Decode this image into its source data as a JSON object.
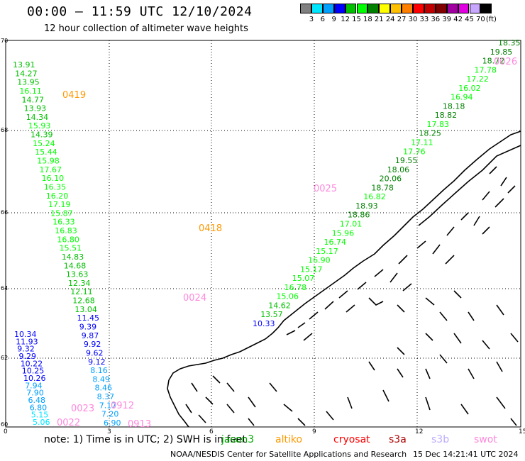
{
  "header": {
    "title": "00:00 — 11:59 UTC 12/10/2024",
    "subtitle": "12 hour collection of altimeter wave heights"
  },
  "legend": {
    "unit": "(ft)",
    "labels": [
      "3",
      "6",
      "9",
      "12",
      "15",
      "18",
      "21",
      "24",
      "27",
      "30",
      "33",
      "36",
      "39",
      "42",
      "45",
      "70"
    ],
    "colors": [
      "#808080",
      "#00e6ff",
      "#00a0ff",
      "#0000ff",
      "#00c000",
      "#00ff00",
      "#008000",
      "#ffff00",
      "#ffc000",
      "#ff8000",
      "#ff0000",
      "#c00000",
      "#800000",
      "#a000a0",
      "#e000e0",
      "#c8a8ff",
      "#000000"
    ]
  },
  "axes": {
    "x_ticks": [
      "0",
      "3",
      "6",
      "9",
      "12",
      "15"
    ],
    "y_ticks": [
      "70",
      "68",
      "66",
      "64",
      "62",
      "60"
    ]
  },
  "passes": [
    {
      "label": "0419",
      "color": "#ff9900"
    },
    {
      "label": "0418",
      "color": "#ff9900"
    },
    {
      "label": "0026",
      "color": "#ff88dd"
    },
    {
      "label": "0025",
      "color": "#ff88dd"
    },
    {
      "label": "0024",
      "color": "#ff88dd"
    },
    {
      "label": "0912",
      "color": "#ff88dd"
    },
    {
      "label": "0913",
      "color": "#ff88dd"
    },
    {
      "label": "0022",
      "color": "#ff88dd"
    },
    {
      "label": "0023",
      "color": "#ff88dd"
    }
  ],
  "track_values": {
    "track1": [
      "13.91",
      "14.27",
      "13.95",
      "16.11",
      "14.77",
      "13.93",
      "14.34",
      "15.93",
      "14.39",
      "15.24",
      "15.44",
      "15.98",
      "17.67",
      "16.10",
      "16.35",
      "16.20",
      "17.19",
      "15.87",
      "16.33",
      "16.83",
      "16.80",
      "15.51",
      "14.83",
      "14.68",
      "13.63",
      "12.34",
      "12.11",
      "12.68",
      "13.04",
      "11.45",
      "9.39",
      "9.87",
      "9.92",
      "9.62",
      "9.12",
      "8.16",
      "8.49",
      "8.46",
      "8.37",
      "7.17",
      "7.20",
      "6.90"
    ],
    "track2": [
      "18.35",
      "19.85",
      "18.72",
      "17.78",
      "17.22",
      "16.02",
      "16.94",
      "18.18",
      "18.82",
      "17.83",
      "18.25",
      "17.11",
      "17.76",
      "19.55",
      "18.06",
      "20.06",
      "18.78",
      "16.82",
      "18.93",
      "18.86",
      "17.01",
      "15.96",
      "16.74",
      "15.17",
      "16.90",
      "15.17",
      "15.07",
      "16.78",
      "15.06",
      "14.62",
      "13.57",
      "10.33"
    ],
    "track3": [
      "10.34",
      "11.93",
      "9.32",
      "9.29",
      "10.22",
      "10.25",
      "10.26",
      "7.94",
      "7.90",
      "6.48",
      "6.80",
      "5.15",
      "5.06"
    ]
  },
  "note": {
    "prefix": "note: 1) Time is in UTC; 2) SWH is in feet",
    "satellites": [
      {
        "name": "jason3",
        "color": "#00aa00"
      },
      {
        "name": "altiko",
        "color": "#ff9900"
      },
      {
        "name": "cryosat",
        "color": "#ff0000"
      },
      {
        "name": "s3a",
        "color": "#aa0000"
      },
      {
        "name": "s3b",
        "color": "#bbaaff"
      },
      {
        "name": "swot",
        "color": "#ff88dd"
      }
    ]
  },
  "footer": {
    "credit": "NOAA/NESDIS Center for Satellite Applications and Research",
    "timestamp": "15 Dec 14:21:41 UTC 2024"
  }
}
